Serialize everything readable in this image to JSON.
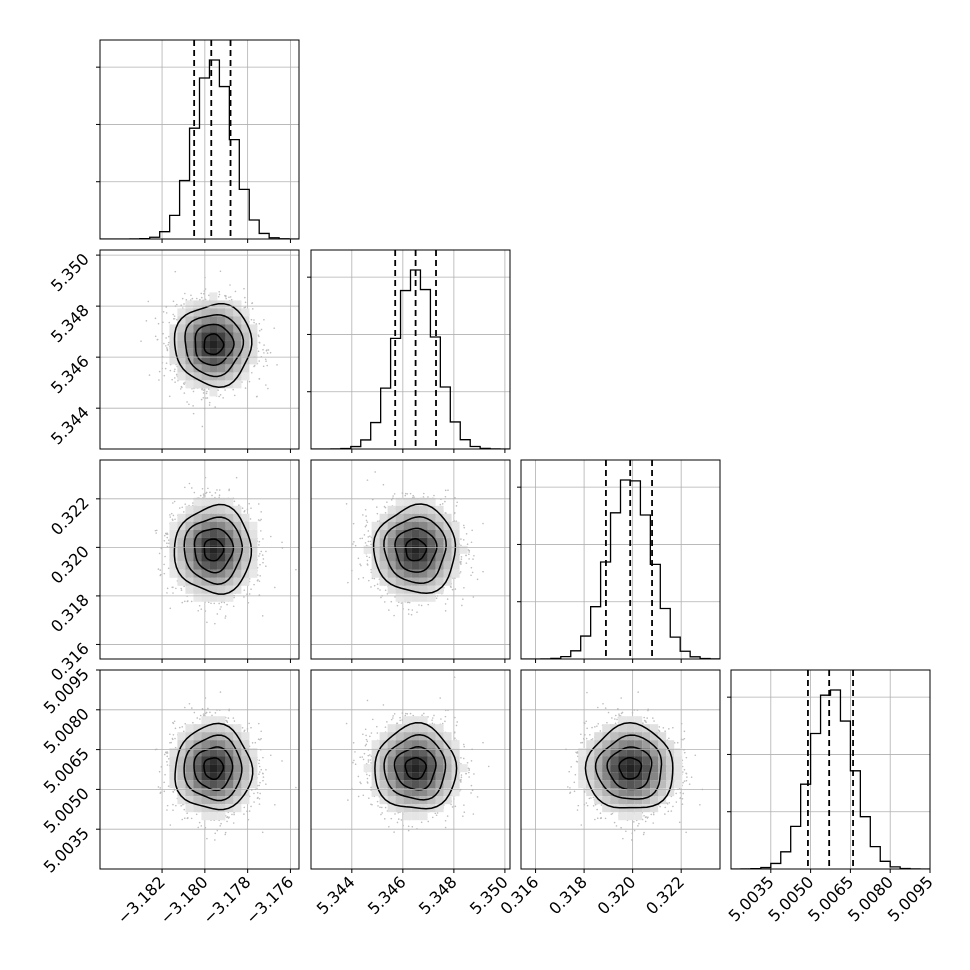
{
  "chart_data": {
    "type": "corner",
    "grid": true,
    "quantiles": [
      0.16,
      0.5,
      0.84
    ],
    "params": [
      {
        "ticks": [
          -3.182,
          -3.18,
          -3.178,
          -3.176
        ],
        "tick_labels": [
          "−3.182",
          "−3.180",
          "−3.178",
          "−3.176"
        ],
        "range": [
          -3.1849,
          -3.1756
        ],
        "mean": -3.1796,
        "sigma": 0.0009,
        "q16": -3.1805,
        "q50": -3.1797,
        "q84": -3.1788
      },
      {
        "ticks": [
          5.344,
          5.346,
          5.348,
          5.35
        ],
        "tick_labels": [
          "5.344",
          "5.346",
          "5.348",
          "5.350"
        ],
        "range": [
          5.3424,
          5.3502
        ],
        "mean": 5.3465,
        "sigma": 0.0008,
        "q16": 5.3457,
        "q50": 5.3465,
        "q84": 5.3473
      },
      {
        "ticks": [
          0.316,
          0.318,
          0.32,
          0.322
        ],
        "tick_labels": [
          "0.316",
          "0.318",
          "0.320",
          "0.322"
        ],
        "range": [
          0.3154,
          0.3236
        ],
        "mean": 0.3199,
        "sigma": 0.0009,
        "q16": 0.3189,
        "q50": 0.3199,
        "q84": 0.3208
      },
      {
        "ticks": [
          5.0035,
          5.005,
          5.0065,
          5.008,
          5.0095
        ],
        "tick_labels": [
          "5.0035",
          "5.0050",
          "5.0065",
          "5.0080",
          "5.0095"
        ],
        "range": [
          5.002,
          5.0095
        ],
        "mean": 5.0058,
        "sigma": 0.0008,
        "q16": 5.0049,
        "q50": 5.0057,
        "q84": 5.0066
      }
    ]
  }
}
